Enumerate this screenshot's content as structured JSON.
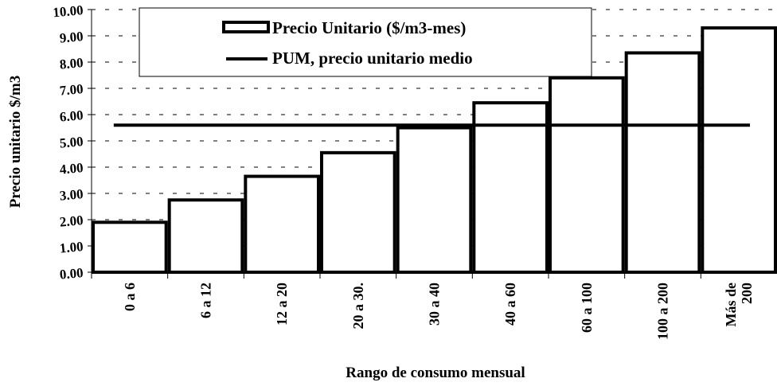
{
  "chart_data": {
    "type": "bar",
    "categories": [
      "0 a 6",
      "6 a 12",
      "12 a 20",
      "20 a 30.",
      "30 a 40",
      "40 a 60",
      "60 a 100",
      "100 a 200",
      "Más de 200"
    ],
    "category_lines": [
      [
        "0 a 6"
      ],
      [
        "6 a 12"
      ],
      [
        "12 a 20"
      ],
      [
        "20 a 30."
      ],
      [
        "30 a 40"
      ],
      [
        "40 a 60"
      ],
      [
        "60 a 100"
      ],
      [
        "100 a 200"
      ],
      [
        "Más de",
        "200"
      ]
    ],
    "series": [
      {
        "name": "Precio Unitario ($/m3-mes)",
        "type": "bar",
        "values": [
          1.9,
          2.75,
          3.65,
          4.55,
          5.5,
          6.45,
          7.4,
          8.35,
          9.3
        ]
      },
      {
        "name": "PUM, precio unitario medio",
        "type": "line",
        "value": 5.6
      }
    ],
    "xlabel": "Rango de consumo mensual",
    "ylabel": "Precio unitario $/m3",
    "ylim": [
      0,
      10
    ],
    "yticks": [
      "0.00",
      "1.00",
      "2.00",
      "3.00",
      "4.00",
      "5.00",
      "6.00",
      "7.00",
      "8.00",
      "9.00",
      "10.00"
    ],
    "grid": true,
    "legend_position": "top-center",
    "colors": {
      "bar_fill": "#ffffff",
      "bar_stroke": "#000000",
      "line": "#000000",
      "grid": "#000000"
    }
  }
}
